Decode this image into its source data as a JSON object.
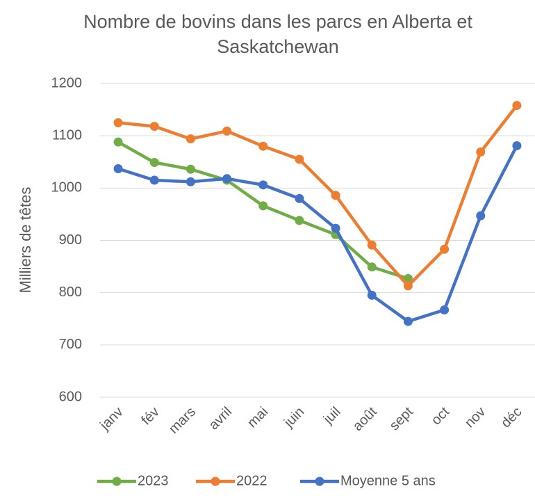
{
  "chart_data": {
    "type": "line",
    "title": "Nombre de bovins dans les parcs en Alberta et Saskatchewan",
    "y_label": "Milliers de têtes",
    "categories": [
      "janv",
      "fév",
      "mars",
      "avril",
      "mai",
      "juin",
      "juil",
      "août",
      "sept",
      "oct",
      "nov",
      "déc"
    ],
    "series": [
      {
        "name": "2023",
        "color": "#70ad47",
        "values": [
          1088,
          1049,
          1036,
          1015,
          966,
          938,
          911,
          849,
          827,
          null,
          null,
          null
        ]
      },
      {
        "name": "2022",
        "color": "#ed7d31",
        "values": [
          1125,
          1118,
          1094,
          1109,
          1080,
          1055,
          986,
          891,
          813,
          883,
          1069,
          1158
        ]
      },
      {
        "name": "Moyenne 5 ans",
        "color": "#4472c4",
        "values": [
          1037,
          1015,
          1012,
          1018,
          1006,
          980,
          923,
          795,
          745,
          767,
          947,
          1081
        ]
      }
    ],
    "ylim": [
      600,
      1200
    ],
    "yticks": [
      600,
      700,
      800,
      900,
      1000,
      1100,
      1200
    ],
    "grid": true,
    "legend": "bottom"
  }
}
